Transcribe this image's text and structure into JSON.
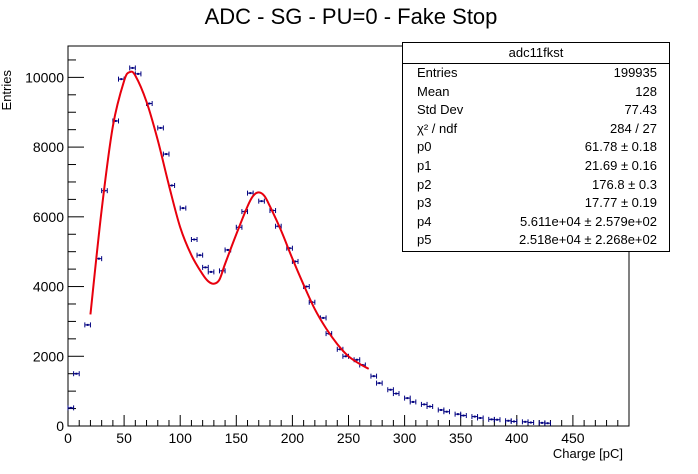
{
  "chart_data": {
    "type": "scatter",
    "title": "ADC - SG - PU=0 - Fake Stop",
    "xlabel": "Charge [pC]",
    "ylabel": "Entries",
    "xlim": [
      0,
      500
    ],
    "ylim": [
      0,
      10900
    ],
    "x_ticks": [
      "0",
      "50",
      "100",
      "150",
      "200",
      "250",
      "300",
      "350",
      "400",
      "450"
    ],
    "y_ticks": [
      "0",
      "2000",
      "4000",
      "6000",
      "8000",
      "10000"
    ],
    "bin_width": 5,
    "points": {
      "x": [
        2.5,
        7.5,
        17.5,
        27.5,
        32.5,
        42.5,
        47.5,
        57.5,
        62.5,
        72.5,
        82.5,
        87.5,
        92.5,
        102.5,
        112.5,
        117.5,
        122.5,
        127.5,
        137.5,
        142.5,
        152.5,
        157.5,
        162.5,
        172.5,
        182.5,
        187.5,
        197.5,
        202.5,
        212.5,
        217.5,
        227.5,
        232.5,
        242.5,
        247.5,
        257.5,
        262.5,
        272.5,
        277.5,
        287.5,
        292.5,
        302.5,
        307.5,
        317.5,
        322.5,
        332.5,
        337.5,
        347.5,
        352.5,
        362.5,
        367.5,
        377.5,
        382.5,
        392.5,
        397.5,
        407.5,
        412.5,
        422.5,
        427.5
      ],
      "y": [
        520,
        1500,
        2900,
        4800,
        6750,
        8750,
        9950,
        10270,
        10100,
        9250,
        8550,
        7800,
        6900,
        6250,
        5350,
        4900,
        4550,
        4420,
        4450,
        5050,
        5700,
        6150,
        6680,
        6450,
        6180,
        5730,
        5100,
        4720,
        4000,
        3550,
        3100,
        2650,
        2200,
        2000,
        1900,
        1750,
        1430,
        1230,
        1040,
        930,
        800,
        690,
        620,
        560,
        460,
        410,
        340,
        300,
        270,
        230,
        190,
        180,
        150,
        130,
        120,
        100,
        90,
        80
      ]
    },
    "fit": {
      "x": [
        20,
        30,
        40,
        50,
        55,
        60,
        70,
        80,
        90,
        100,
        110,
        120,
        125,
        130,
        135,
        140,
        150,
        160,
        165,
        170,
        175,
        180,
        190,
        200,
        210,
        220,
        230,
        240,
        250,
        260,
        268
      ],
      "y": [
        3200,
        6200,
        8600,
        9900,
        10150,
        10050,
        9300,
        8200,
        6900,
        5700,
        4900,
        4350,
        4150,
        4080,
        4200,
        4650,
        5500,
        6300,
        6600,
        6700,
        6600,
        6300,
        5600,
        4800,
        4050,
        3350,
        2800,
        2350,
        2000,
        1780,
        1640
      ]
    },
    "stats": {
      "title": "adc11fkst",
      "rows": [
        {
          "label": "Entries",
          "value": "199935"
        },
        {
          "label": "Mean",
          "value": "128"
        },
        {
          "label": "Std Dev",
          "value": "77.43"
        },
        {
          "label": "χ² / ndf",
          "value": "284 / 27"
        },
        {
          "label": "p0",
          "value": "61.78 ± 0.18"
        },
        {
          "label": "p1",
          "value": "21.69 ± 0.16"
        },
        {
          "label": "p2",
          "value": "176.8 ± 0.3"
        },
        {
          "label": "p3",
          "value": "17.77 ± 0.19"
        },
        {
          "label": "p4",
          "value": "5.611e+04 ± 2.579e+02"
        },
        {
          "label": "p5",
          "value": "2.518e+04 ± 2.268e+02"
        }
      ]
    },
    "colors": {
      "points": "#000080",
      "fit": "#e8000d",
      "axis": "#000000"
    },
    "grid": false,
    "legend": "top-right"
  }
}
